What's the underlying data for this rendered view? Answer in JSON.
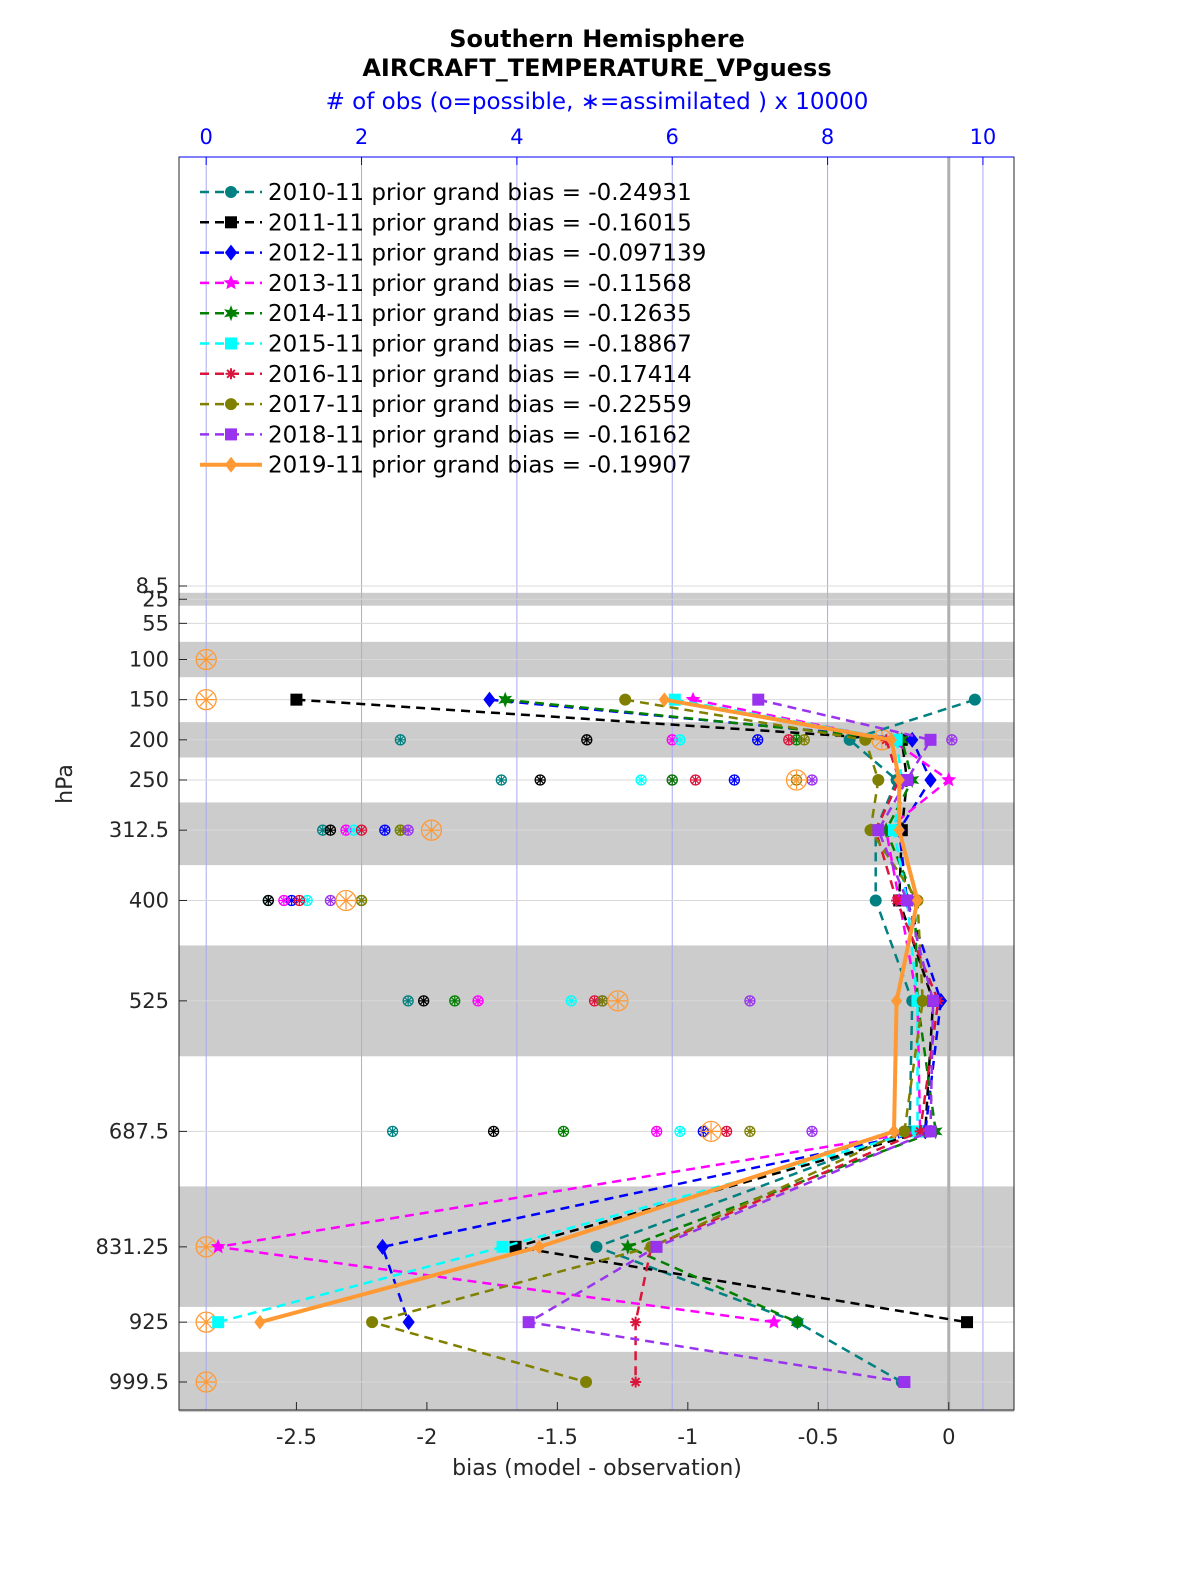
{
  "chart_data": {
    "type": "line",
    "title": "Southern Hemisphere",
    "subtitle": "AIRCRAFT_TEMPERATURE_VPguess",
    "top_axis_label": "# of obs (o=possible, ∗=assimilated ) x 10000",
    "xlabel": "bias (model - observation)",
    "ylabel": "hPa",
    "xlim": [
      -2.95,
      0.25
    ],
    "x_ticks": [
      "-2.5",
      "-2",
      "-1.5",
      "-1",
      "-0.5",
      "0"
    ],
    "x_tick_values": [
      -2.5,
      -2,
      -1.5,
      -1,
      -0.5,
      0
    ],
    "top_xlim": [
      -0.35,
      10.4
    ],
    "top_ticks": [
      "0",
      "2",
      "4",
      "6",
      "8",
      "10"
    ],
    "top_tick_values": [
      0,
      2,
      4,
      6,
      8,
      10
    ],
    "levels": [
      8.5,
      25,
      55,
      100,
      150,
      200,
      250,
      312.5,
      400,
      525,
      687.5,
      831.25,
      925,
      999.5
    ],
    "level_labels": [
      "8.5",
      "25",
      "55",
      "100",
      "150",
      "200",
      "250",
      "312.5",
      "400",
      "525",
      "687.5",
      "831.25",
      "925",
      "999.5"
    ],
    "shaded_bands": [
      [
        17,
        33
      ],
      [
        78,
        122
      ],
      [
        178,
        222
      ],
      [
        278,
        356
      ],
      [
        456,
        594
      ],
      [
        756,
        906
      ],
      [
        962,
        1037
      ]
    ],
    "zero_line": 0,
    "legend_position": "top-left",
    "series": [
      {
        "name": "2010-11 prior grand bias = -0.24931",
        "color": "#008080",
        "marker": "circle",
        "values": [
          null,
          null,
          null,
          null,
          0.1,
          -0.38,
          -0.2,
          -0.28,
          -0.28,
          -0.14,
          -0.15,
          -1.35,
          -0.58,
          -0.18
        ],
        "obs_possible": [
          null,
          null,
          null,
          null,
          null,
          2.5,
          3.8,
          1.5,
          0.8,
          2.6,
          2.4,
          null,
          null,
          null
        ],
        "obs_assimilated": [
          null,
          null,
          null,
          null,
          null,
          2.5,
          3.8,
          1.5,
          0.8,
          2.6,
          2.4,
          null,
          null,
          null
        ]
      },
      {
        "name": "2011-11 prior grand bias = -0.16015",
        "color": "#000000",
        "marker": "square",
        "values": [
          null,
          null,
          null,
          null,
          -2.5,
          -0.18,
          -0.16,
          -0.18,
          -0.19,
          -0.06,
          -0.09,
          -1.66,
          0.07,
          null
        ],
        "obs_possible": [
          null,
          null,
          null,
          null,
          null,
          4.9,
          4.3,
          1.6,
          0.8,
          2.8,
          3.7,
          null,
          null,
          null
        ],
        "obs_assimilated": [
          null,
          null,
          null,
          null,
          null,
          4.9,
          4.3,
          1.6,
          0.8,
          2.8,
          3.7,
          null,
          null,
          null
        ]
      },
      {
        "name": "2012-11 prior grand bias = -0.097139",
        "color": "#0000ff",
        "marker": "diamond",
        "values": [
          null,
          null,
          null,
          null,
          -1.76,
          -0.14,
          -0.07,
          -0.19,
          -0.16,
          -0.03,
          -0.09,
          -2.17,
          -2.07,
          null
        ],
        "obs_possible": [
          null,
          null,
          null,
          null,
          null,
          7.1,
          6.8,
          2.3,
          1.1,
          5.1,
          6.4,
          null,
          null,
          null
        ],
        "obs_assimilated": [
          null,
          null,
          null,
          null,
          null,
          7.1,
          6.8,
          2.3,
          1.1,
          5.1,
          6.4,
          null,
          null,
          null
        ]
      },
      {
        "name": "2013-11 prior grand bias = -0.11568",
        "color": "#ff00ff",
        "marker": "star",
        "values": [
          null,
          null,
          null,
          null,
          -0.98,
          -0.22,
          0.0,
          -0.24,
          -0.19,
          -0.12,
          -0.11,
          -2.8,
          -0.67,
          null
        ],
        "obs_possible": [
          null,
          null,
          null,
          null,
          null,
          6.0,
          6.0,
          1.8,
          1.0,
          3.5,
          5.8,
          null,
          null,
          null
        ],
        "obs_assimilated": [
          null,
          null,
          null,
          null,
          null,
          6.0,
          6.0,
          1.8,
          1.0,
          3.5,
          5.8,
          null,
          null,
          null
        ]
      },
      {
        "name": "2014-11 prior grand bias = -0.12635",
        "color": "#008000",
        "marker": "hexagram",
        "values": [
          null,
          null,
          null,
          null,
          -1.7,
          -0.18,
          -0.14,
          -0.24,
          -0.13,
          -0.12,
          -0.05,
          -1.23,
          -0.58,
          null
        ],
        "obs_possible": [
          null,
          null,
          null,
          null,
          null,
          7.6,
          6.0,
          2.5,
          2.0,
          3.2,
          4.6,
          null,
          null,
          null
        ],
        "obs_assimilated": [
          null,
          null,
          null,
          null,
          null,
          7.6,
          6.0,
          2.5,
          2.0,
          3.2,
          4.6,
          null,
          null,
          null
        ]
      },
      {
        "name": "2015-11 prior grand bias = -0.18867",
        "color": "#00ffff",
        "marker": "square",
        "values": [
          null,
          null,
          null,
          null,
          -1.05,
          -0.2,
          -0.18,
          -0.21,
          -0.16,
          -0.12,
          -0.12,
          -1.71,
          -2.8,
          null
        ],
        "obs_possible": [
          null,
          null,
          null,
          null,
          null,
          6.1,
          5.6,
          1.9,
          1.3,
          4.7,
          6.1,
          null,
          null,
          null
        ],
        "obs_assimilated": [
          null,
          null,
          null,
          null,
          null,
          6.1,
          5.6,
          1.9,
          1.3,
          4.7,
          6.1,
          null,
          null,
          null
        ]
      },
      {
        "name": "2016-11 prior grand bias = -0.17414",
        "color": "#dc143c",
        "marker": "asterisk",
        "values": [
          null,
          null,
          null,
          null,
          null,
          -0.24,
          -0.19,
          -0.28,
          -0.2,
          -0.04,
          -0.11,
          -1.14,
          -1.2,
          -1.2
        ],
        "obs_possible": [
          null,
          null,
          null,
          null,
          null,
          7.5,
          6.3,
          2.0,
          1.2,
          5.0,
          6.7,
          null,
          null,
          null
        ],
        "obs_assimilated": [
          null,
          null,
          null,
          null,
          null,
          7.5,
          6.3,
          2.0,
          1.2,
          5.0,
          6.7,
          null,
          null,
          null
        ]
      },
      {
        "name": "2017-11 prior grand bias = -0.22559",
        "color": "#808000",
        "marker": "circle",
        "values": [
          null,
          null,
          null,
          null,
          -1.24,
          -0.32,
          -0.27,
          -0.3,
          -0.12,
          -0.1,
          -0.17,
          -1.14,
          -2.21,
          -1.39
        ],
        "obs_possible": [
          null,
          null,
          null,
          null,
          null,
          7.7,
          7.6,
          2.5,
          2.0,
          5.1,
          7.0,
          null,
          null,
          null
        ],
        "obs_assimilated": [
          null,
          null,
          null,
          null,
          null,
          7.7,
          7.6,
          2.5,
          2.0,
          5.1,
          7.0,
          null,
          null,
          null
        ]
      },
      {
        "name": "2018-11 prior grand bias = -0.16162",
        "color": "#9933ee",
        "marker": "square",
        "values": [
          null,
          null,
          null,
          null,
          -0.73,
          -0.07,
          -0.16,
          -0.27,
          -0.16,
          -0.06,
          -0.07,
          -1.12,
          -1.61,
          -0.17
        ],
        "obs_possible": [
          null,
          null,
          null,
          null,
          null,
          9.6,
          7.8,
          2.6,
          1.6,
          7.0,
          7.8,
          null,
          null,
          null
        ],
        "obs_assimilated": [
          null,
          null,
          null,
          null,
          null,
          9.6,
          7.8,
          2.6,
          1.6,
          7.0,
          7.8,
          null,
          null,
          null
        ]
      },
      {
        "name": "2019-11 prior grand bias = -0.19907",
        "color": "#ff9933",
        "marker": "diamond",
        "values": [
          null,
          null,
          null,
          null,
          -1.09,
          -0.22,
          -0.19,
          -0.19,
          -0.12,
          -0.2,
          -0.21,
          -1.57,
          -2.64,
          null
        ],
        "obs_possible": [
          null,
          null,
          null,
          0.0,
          0.0,
          8.7,
          7.6,
          2.9,
          1.8,
          5.3,
          6.5,
          0.0,
          0.0,
          0.0
        ],
        "obs_assimilated": [
          null,
          null,
          null,
          0.0,
          0.0,
          8.7,
          7.6,
          2.9,
          1.8,
          5.3,
          6.5,
          0.0,
          0.0,
          0.0
        ]
      }
    ]
  }
}
